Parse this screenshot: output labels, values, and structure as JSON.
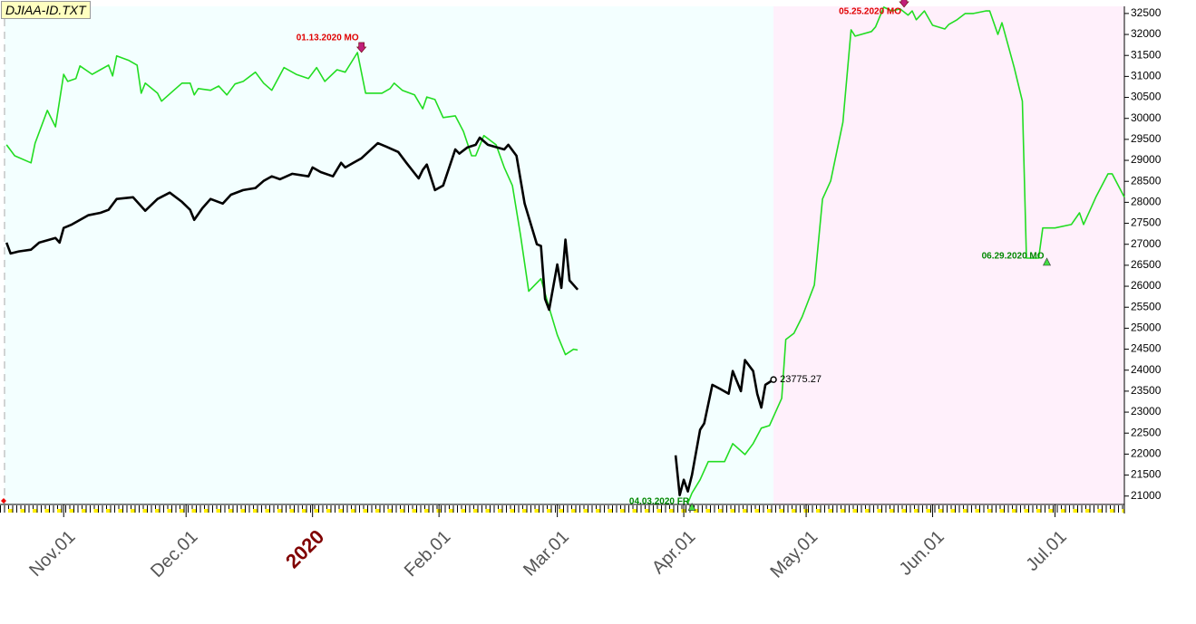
{
  "chart_data": {
    "type": "line",
    "title": "DJIAA-ID.TXT",
    "xlim": [
      16.5,
      291
    ],
    "ylim": [
      20800,
      32670
    ],
    "xticks": [
      {
        "value": 31,
        "label": "Nov.01"
      },
      {
        "value": 61,
        "label": "Dec.01"
      },
      {
        "value": 92,
        "label": "2020"
      },
      {
        "value": 123,
        "label": "Feb.01"
      },
      {
        "value": 152,
        "label": "Mar.01"
      },
      {
        "value": 183,
        "label": "Apr.01"
      },
      {
        "value": 213,
        "label": "May.01"
      },
      {
        "value": 244,
        "label": "Jun.01"
      },
      {
        "value": 274,
        "label": "Jul.01"
      }
    ],
    "yticks": [
      21000,
      21500,
      22000,
      22500,
      23000,
      23500,
      24000,
      24500,
      25000,
      25500,
      26000,
      26500,
      27000,
      27500,
      28000,
      28500,
      29000,
      29500,
      30000,
      30500,
      31000,
      31500,
      32000,
      32500
    ],
    "grid": false,
    "series": [
      {
        "color": "#22dd22",
        "x": [
          17,
          19,
          23,
          24,
          27,
          29,
          31,
          32,
          34,
          35,
          38,
          40,
          42,
          43,
          44,
          47,
          49,
          50,
          51,
          54,
          55,
          58,
          60,
          62,
          63,
          64,
          67,
          69,
          71,
          73,
          75,
          78,
          80,
          82,
          85,
          88,
          91,
          93,
          95,
          98,
          100,
          103,
          105,
          109,
          111,
          112,
          114,
          117,
          119,
          120,
          122,
          124,
          127,
          129,
          131,
          132,
          134,
          137,
          139,
          141,
          143,
          145,
          148,
          150,
          152,
          154,
          156,
          157,
          null,
          184,
          185,
          187,
          189,
          193,
          195,
          198,
          200,
          202,
          204,
          207,
          208,
          210,
          212,
          215,
          217,
          219,
          222,
          224,
          225,
          229,
          230,
          232,
          234,
          236,
          238,
          239,
          240,
          242,
          244,
          247,
          248,
          250,
          252,
          254,
          257,
          258,
          260,
          261,
          264,
          266,
          267,
          270,
          271,
          274,
          278,
          280,
          281,
          284,
          287,
          288,
          291
        ],
        "values": [
          29370,
          29110,
          28940,
          29410,
          30190,
          29800,
          31050,
          30880,
          30950,
          31250,
          31050,
          31160,
          31270,
          31010,
          31490,
          31380,
          31270,
          30600,
          30840,
          30600,
          30410,
          30670,
          30840,
          30840,
          30560,
          30710,
          30670,
          30770,
          30560,
          30820,
          30880,
          31100,
          30840,
          30670,
          31210,
          31050,
          30950,
          31210,
          30880,
          31160,
          31100,
          31570,
          30600,
          30600,
          30710,
          30840,
          30670,
          30560,
          30230,
          30510,
          30450,
          30020,
          30060,
          29690,
          29110,
          29110,
          29590,
          29370,
          28830,
          28400,
          27210,
          25880,
          26180,
          25490,
          24840,
          24370,
          24500,
          24480,
          null,
          20830,
          21070,
          21390,
          21820,
          21820,
          22250,
          21990,
          22250,
          22620,
          22680,
          23330,
          24730,
          24880,
          25270,
          26030,
          28080,
          28510,
          29910,
          32110,
          31960,
          32070,
          32180,
          32650,
          32560,
          32610,
          32460,
          32560,
          32350,
          32560,
          32220,
          32130,
          32240,
          32350,
          32500,
          32500,
          32560,
          32560,
          32000,
          32280,
          31210,
          30410,
          26670,
          26670,
          27390,
          27390,
          27470,
          27750,
          27470,
          28120,
          28680,
          28680,
          28120
        ]
      },
      {
        "color": "#000000",
        "x": [
          17,
          18,
          20,
          23,
          25,
          29,
          30,
          31,
          33,
          37,
          40,
          42,
          44,
          48,
          51,
          54,
          57,
          60,
          62,
          63,
          65,
          67,
          70,
          72,
          75,
          78,
          80,
          82,
          84,
          87,
          91,
          92,
          94,
          97,
          99,
          100,
          102,
          104,
          108,
          110,
          113,
          115,
          118,
          119,
          120,
          122,
          124,
          127,
          128,
          130,
          132,
          133,
          135,
          139,
          140,
          142,
          144,
          147,
          148,
          149,
          150,
          152,
          153,
          154,
          155,
          157,
          null,
          181,
          182,
          183,
          184,
          185,
          187,
          188,
          190,
          192,
          194,
          195,
          197,
          198,
          200,
          201,
          202,
          203,
          205
        ],
        "values": [
          27040,
          26780,
          26830,
          26870,
          27040,
          27150,
          27040,
          27390,
          27470,
          27690,
          27750,
          27820,
          28080,
          28120,
          27800,
          28080,
          28230,
          28010,
          27820,
          27580,
          27860,
          28080,
          27970,
          28180,
          28290,
          28340,
          28510,
          28620,
          28550,
          28680,
          28620,
          28830,
          28720,
          28620,
          28940,
          28830,
          28940,
          29050,
          29410,
          29330,
          29200,
          28940,
          28570,
          28770,
          28900,
          28290,
          28400,
          29260,
          29160,
          29310,
          29370,
          29540,
          29370,
          29260,
          29370,
          29110,
          27970,
          27000,
          26960,
          25700,
          25440,
          26520,
          25960,
          27110,
          26140,
          25920,
          null,
          21970,
          21020,
          21390,
          21110,
          21500,
          22580,
          22730,
          23650,
          23550,
          23440,
          23980,
          23500,
          24240,
          23980,
          23440,
          23110,
          23650,
          23775.27
        ]
      }
    ],
    "annotations": [
      {
        "text": "01.13.2020 MO",
        "x": 104,
        "value": 31570,
        "marker": "down",
        "color": "#e00000"
      },
      {
        "text": "04.03.2020 FR",
        "x": 185,
        "value": 20830,
        "marker": "up",
        "color": "#008800"
      },
      {
        "text": "05.25.2020 MO",
        "x": 237,
        "value": 32650,
        "marker": "down",
        "color": "#e00000"
      },
      {
        "text": "06.29.2020 MO",
        "x": 272,
        "value": 26670,
        "marker": "up",
        "color": "#008800"
      },
      {
        "x": 205,
        "value": 23775.27,
        "marker": "circle",
        "color": "#000000"
      }
    ]
  }
}
